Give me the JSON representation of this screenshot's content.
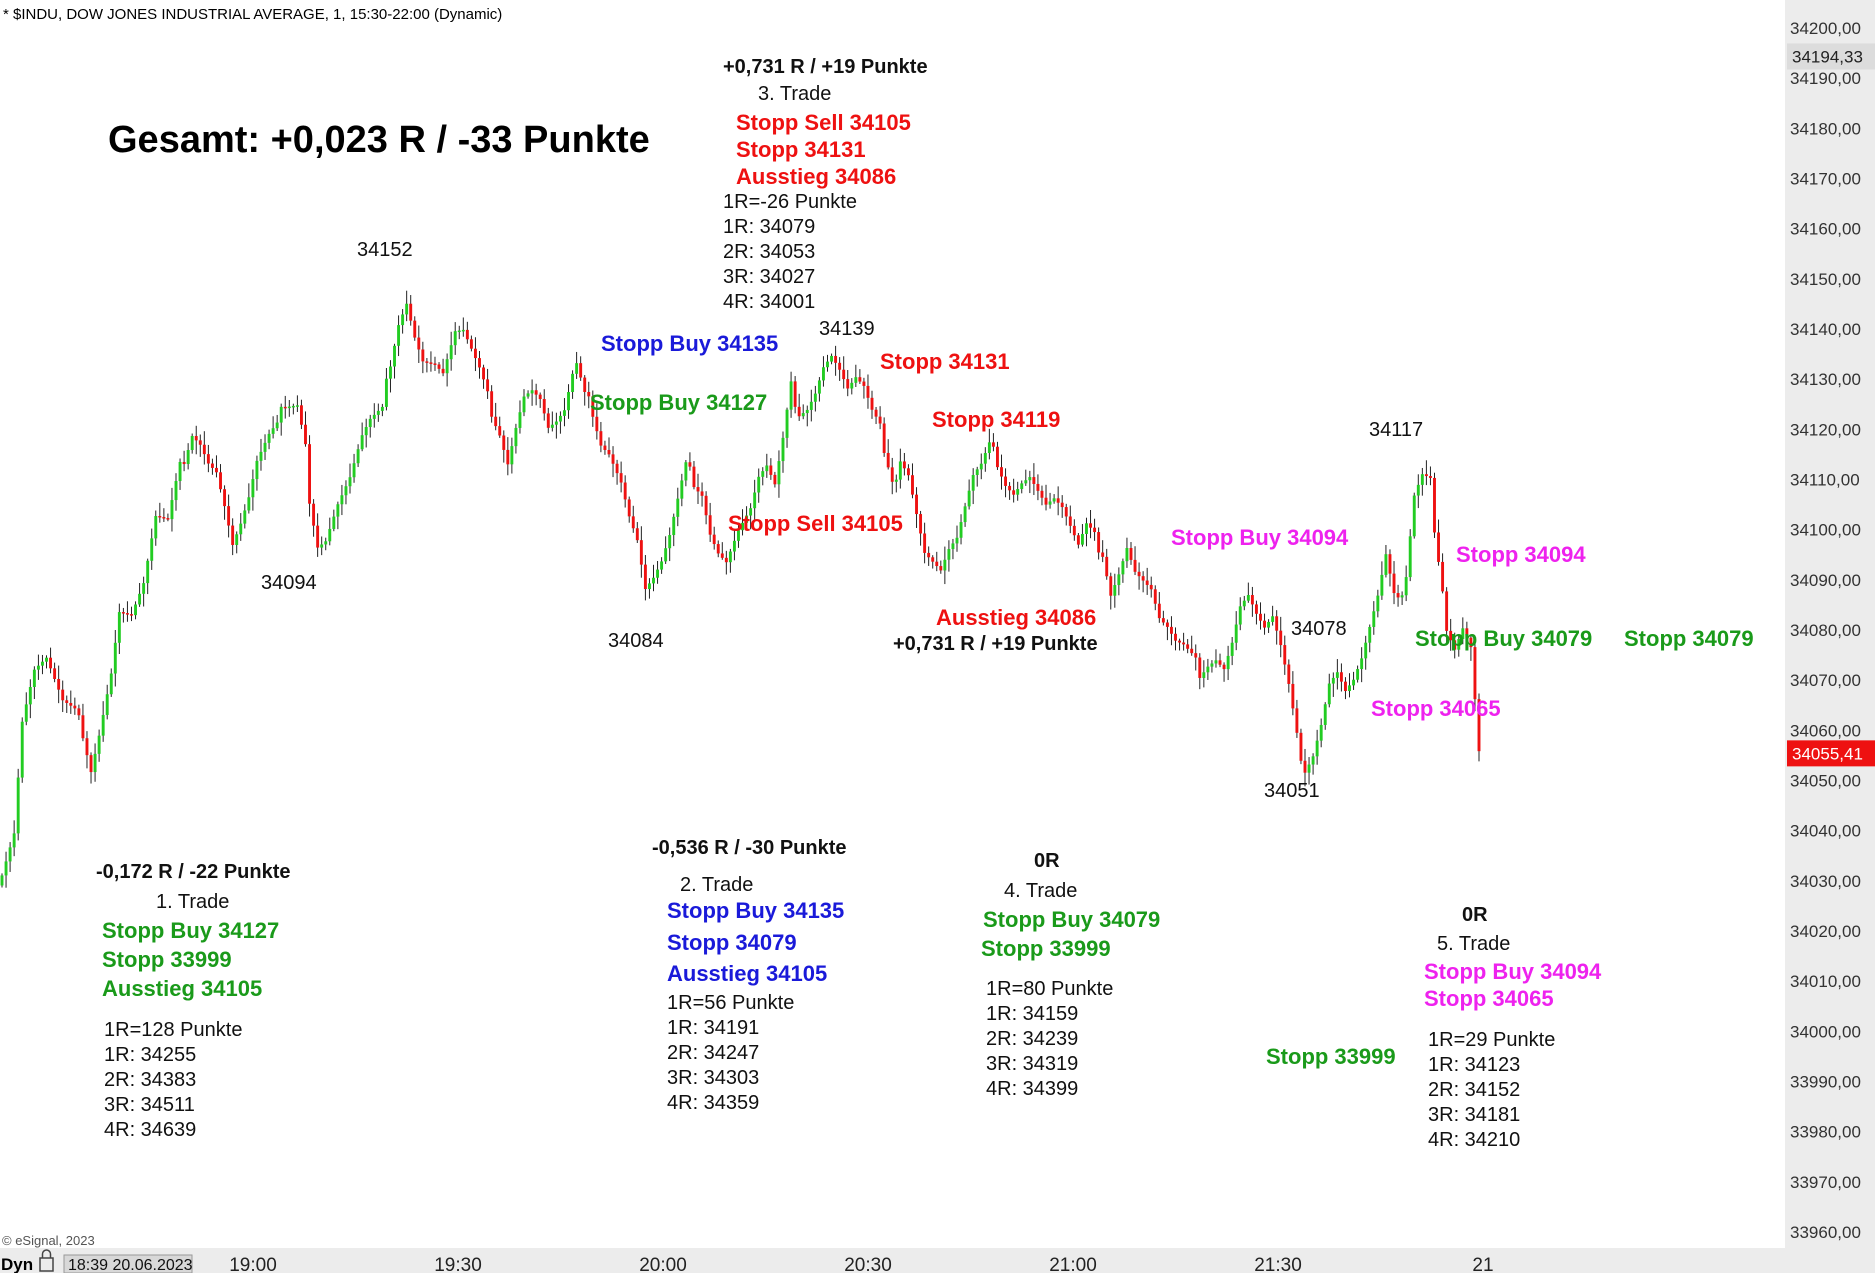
{
  "header": {
    "symbol_line": "* $INDU, DOW JONES INDUSTRIAL AVERAGE, 1, 15:30-22:00 (Dynamic)",
    "copyright": "© eSignal, 2023",
    "footer_mode": "Dyn",
    "footer_datetime": "18:39 20.06.2023"
  },
  "colors": {
    "up": "#22cc22",
    "down": "#ee1111",
    "green_text": "#1a9a1a",
    "red_text": "#ee1111",
    "blue_text": "#1a1ad9",
    "magenta_text": "#ee22ee",
    "last_price_bg": "#ee1111"
  },
  "total_label": "Gesamt: +0,023 R / -33 Punkte",
  "chart_data": {
    "type": "candlestick",
    "interval": "1 minute",
    "ylim": [
      33960,
      34200
    ],
    "y_ticks": [
      "34200,00",
      "34190,00",
      "34180,00",
      "34170,00",
      "34160,00",
      "34150,00",
      "34140,00",
      "34130,00",
      "34120,00",
      "34110,00",
      "34100,00",
      "34090,00",
      "34080,00",
      "34070,00",
      "34060,00",
      "34050,00",
      "34040,00",
      "34030,00",
      "34020,00",
      "34010,00",
      "34000,00",
      "33990,00",
      "33980,00",
      "33970,00",
      "33960,00"
    ],
    "x_ticks": [
      "19:00",
      "19:30",
      "20:00",
      "20:30",
      "21:00",
      "21:30",
      "21"
    ],
    "price_markers": [
      {
        "label": "34194,33",
        "value": 34194.33,
        "style": "grey"
      },
      {
        "label": "34055,41",
        "value": 34055.41,
        "style": "red"
      }
    ],
    "pivot_labels": [
      "34152",
      "34094",
      "34084",
      "34139",
      "34117",
      "34078",
      "34051"
    ],
    "path_points": [
      [
        0,
        34032
      ],
      [
        3,
        34040
      ],
      [
        5,
        34062
      ],
      [
        8,
        34072
      ],
      [
        11,
        34074
      ],
      [
        15,
        34065
      ],
      [
        18,
        34063
      ],
      [
        20,
        34060
      ],
      [
        22,
        34053
      ],
      [
        24,
        34060
      ],
      [
        27,
        34072
      ],
      [
        29,
        34084
      ],
      [
        32,
        34083
      ],
      [
        35,
        34089
      ],
      [
        38,
        34102
      ],
      [
        41,
        34101
      ],
      [
        44,
        34112
      ],
      [
        47,
        34120
      ],
      [
        49,
        34118
      ],
      [
        51,
        34114
      ],
      [
        53,
        34112
      ],
      [
        55,
        34105
      ],
      [
        57,
        34097
      ],
      [
        59,
        34101
      ],
      [
        61,
        34106
      ],
      [
        63,
        34113
      ],
      [
        66,
        34118
      ],
      [
        68,
        34120
      ],
      [
        70,
        34126
      ],
      [
        73,
        34126
      ],
      [
        75,
        34118
      ],
      [
        76,
        34106
      ],
      [
        78,
        34097
      ],
      [
        80,
        34098
      ],
      [
        83,
        34105
      ],
      [
        86,
        34110
      ],
      [
        89,
        34118
      ],
      [
        91,
        34121
      ],
      [
        94,
        34123
      ],
      [
        96,
        34134
      ],
      [
        98,
        34142
      ],
      [
        100,
        34146
      ],
      [
        102,
        34139
      ],
      [
        104,
        34134
      ],
      [
        107,
        34133
      ],
      [
        109,
        34131
      ],
      [
        112,
        34139
      ],
      [
        114,
        34139
      ],
      [
        116,
        34135
      ],
      [
        118,
        34131
      ],
      [
        120,
        34126
      ],
      [
        123,
        34120
      ],
      [
        125,
        34114
      ],
      [
        127,
        34121
      ],
      [
        129,
        34127
      ],
      [
        131,
        34128
      ],
      [
        133,
        34126
      ],
      [
        135,
        34120
      ],
      [
        137,
        34121
      ],
      [
        139,
        34123
      ],
      [
        141,
        34130
      ],
      [
        142,
        34132
      ],
      [
        144,
        34126
      ],
      [
        146,
        34124
      ],
      [
        148,
        34118
      ],
      [
        150,
        34116
      ],
      [
        153,
        34110
      ],
      [
        155,
        34103
      ],
      [
        157,
        34098
      ],
      [
        159,
        34088
      ],
      [
        161,
        34090
      ],
      [
        163,
        34093
      ],
      [
        165,
        34098
      ],
      [
        167,
        34105
      ],
      [
        169,
        34112
      ],
      [
        171,
        34110
      ],
      [
        173,
        34108
      ],
      [
        175,
        34100
      ],
      [
        177,
        34096
      ],
      [
        179,
        34094
      ],
      [
        182,
        34100
      ],
      [
        185,
        34104
      ],
      [
        187,
        34110
      ],
      [
        189,
        34112
      ],
      [
        191,
        34108
      ],
      [
        193,
        34117
      ],
      [
        195,
        34128
      ],
      [
        197,
        34124
      ],
      [
        199,
        34125
      ],
      [
        201,
        34128
      ],
      [
        203,
        34133
      ],
      [
        205,
        34135
      ],
      [
        207,
        34132
      ],
      [
        209,
        34128
      ],
      [
        211,
        34130
      ],
      [
        213,
        34128
      ],
      [
        215,
        34123
      ],
      [
        217,
        34120
      ],
      [
        218,
        34114
      ],
      [
        220,
        34108
      ],
      [
        222,
        34115
      ],
      [
        224,
        34112
      ],
      [
        226,
        34104
      ],
      [
        228,
        34096
      ],
      [
        230,
        34094
      ],
      [
        232,
        34092
      ],
      [
        234,
        34096
      ],
      [
        236,
        34098
      ],
      [
        238,
        34104
      ],
      [
        240,
        34110
      ],
      [
        242,
        34112
      ],
      [
        244,
        34116
      ],
      [
        246,
        34114
      ],
      [
        248,
        34110
      ],
      [
        250,
        34108
      ],
      [
        252,
        34110
      ],
      [
        254,
        34111
      ],
      [
        256,
        34108
      ],
      [
        258,
        34105
      ],
      [
        260,
        34106
      ],
      [
        262,
        34104
      ],
      [
        264,
        34100
      ],
      [
        266,
        34096
      ],
      [
        268,
        34100
      ],
      [
        270,
        34098
      ],
      [
        272,
        34096
      ],
      [
        274,
        34088
      ],
      [
        276,
        34092
      ],
      [
        278,
        34097
      ],
      [
        280,
        34092
      ],
      [
        282,
        34090
      ],
      [
        284,
        34088
      ],
      [
        286,
        34082
      ],
      [
        288,
        34080
      ],
      [
        290,
        34077
      ],
      [
        292,
        34076
      ],
      [
        294,
        34074
      ],
      [
        296,
        34072
      ],
      [
        298,
        34074
      ],
      [
        300,
        34075
      ],
      [
        302,
        34073
      ],
      [
        304,
        34078
      ],
      [
        306,
        34085
      ],
      [
        308,
        34087
      ],
      [
        310,
        34083
      ],
      [
        312,
        34080
      ],
      [
        314,
        34082
      ],
      [
        316,
        34076
      ],
      [
        318,
        34068
      ],
      [
        320,
        34058
      ],
      [
        322,
        34053
      ],
      [
        324,
        34056
      ],
      [
        326,
        34062
      ],
      [
        328,
        34070
      ],
      [
        330,
        34072
      ],
      [
        332,
        34068
      ],
      [
        334,
        34070
      ],
      [
        336,
        34074
      ],
      [
        338,
        34080
      ],
      [
        340,
        34086
      ],
      [
        342,
        34094
      ],
      [
        344,
        34086
      ],
      [
        345,
        34085
      ],
      [
        347,
        34092
      ],
      [
        349,
        34108
      ],
      [
        351,
        34112
      ],
      [
        353,
        34111
      ],
      [
        354,
        34100
      ],
      [
        355,
        34094
      ],
      [
        356,
        34088
      ],
      [
        357,
        34080
      ],
      [
        359,
        34076
      ],
      [
        361,
        34080
      ],
      [
        363,
        34076
      ],
      [
        365,
        34055
      ]
    ]
  },
  "annotations": [
    {
      "text": "+0,731 R / +19 Punkte",
      "color": "black",
      "bold": true
    },
    {
      "text": "3. Trade",
      "color": "black",
      "bold": false
    },
    {
      "text": "Stopp Sell 34105",
      "color": "red",
      "bold": true
    },
    {
      "text": "Stopp 34131",
      "color": "red",
      "bold": true
    },
    {
      "text": "Ausstieg 34086",
      "color": "red",
      "bold": true
    },
    {
      "text": "1R=-26 Punkte",
      "color": "black",
      "bold": false
    },
    {
      "text": "1R: 34079",
      "color": "black",
      "bold": false
    },
    {
      "text": "2R: 34053",
      "color": "black",
      "bold": false
    },
    {
      "text": "3R: 34027",
      "color": "black",
      "bold": false
    },
    {
      "text": "4R: 34001",
      "color": "black",
      "bold": false
    },
    {
      "text": "Stopp Buy 34135",
      "color": "blue",
      "bold": true
    },
    {
      "text": "Stopp Buy 34127",
      "color": "green",
      "bold": true
    },
    {
      "text": "Stopp 34131",
      "color": "red",
      "bold": true
    },
    {
      "text": "Stopp 34119",
      "color": "red",
      "bold": true
    },
    {
      "text": "Stopp Sell 34105",
      "color": "red",
      "bold": true
    },
    {
      "text": "Ausstieg 34086",
      "color": "red",
      "bold": true
    },
    {
      "text": "+0,731 R / +19 Punkte",
      "color": "black",
      "bold": true
    },
    {
      "text": "Stopp Buy 34094",
      "color": "magenta",
      "bold": true
    },
    {
      "text": "Stopp 34094",
      "color": "magenta",
      "bold": true
    },
    {
      "text": "Stopp Buy 34079",
      "color": "green",
      "bold": true
    },
    {
      "text": "Stopp 34079",
      "color": "green",
      "bold": true
    },
    {
      "text": "Stopp 34065",
      "color": "magenta",
      "bold": true
    },
    {
      "text": "-0,172 R / -22 Punkte",
      "color": "black",
      "bold": true
    },
    {
      "text": "1. Trade",
      "color": "black",
      "bold": false
    },
    {
      "text": "Stopp Buy 34127",
      "color": "green",
      "bold": true
    },
    {
      "text": "Stopp 33999",
      "color": "green",
      "bold": true
    },
    {
      "text": "Ausstieg 34105",
      "color": "green",
      "bold": true
    },
    {
      "text": "1R=128 Punkte",
      "color": "black",
      "bold": false
    },
    {
      "text": "1R: 34255",
      "color": "black",
      "bold": false
    },
    {
      "text": "2R: 34383",
      "color": "black",
      "bold": false
    },
    {
      "text": "3R: 34511",
      "color": "black",
      "bold": false
    },
    {
      "text": "4R: 34639",
      "color": "black",
      "bold": false
    },
    {
      "text": "-0,536 R / -30 Punkte",
      "color": "black",
      "bold": true
    },
    {
      "text": "2. Trade",
      "color": "black",
      "bold": false
    },
    {
      "text": "Stopp Buy 34135",
      "color": "blue",
      "bold": true
    },
    {
      "text": "Stopp 34079",
      "color": "blue",
      "bold": true
    },
    {
      "text": "Ausstieg 34105",
      "color": "blue",
      "bold": true
    },
    {
      "text": "1R=56 Punkte",
      "color": "black",
      "bold": false
    },
    {
      "text": "1R: 34191",
      "color": "black",
      "bold": false
    },
    {
      "text": "2R: 34247",
      "color": "black",
      "bold": false
    },
    {
      "text": "3R: 34303",
      "color": "black",
      "bold": false
    },
    {
      "text": "4R: 34359",
      "color": "black",
      "bold": false
    },
    {
      "text": "0R",
      "color": "black",
      "bold": true
    },
    {
      "text": "4. Trade",
      "color": "black",
      "bold": false
    },
    {
      "text": "Stopp Buy 34079",
      "color": "green",
      "bold": true
    },
    {
      "text": "Stopp 33999",
      "color": "green",
      "bold": true
    },
    {
      "text": "1R=80 Punkte",
      "color": "black",
      "bold": false
    },
    {
      "text": "1R: 34159",
      "color": "black",
      "bold": false
    },
    {
      "text": "2R: 34239",
      "color": "black",
      "bold": false
    },
    {
      "text": "3R: 34319",
      "color": "black",
      "bold": false
    },
    {
      "text": "4R: 34399",
      "color": "black",
      "bold": false
    },
    {
      "text": "0R",
      "color": "black",
      "bold": true
    },
    {
      "text": "5. Trade",
      "color": "black",
      "bold": false
    },
    {
      "text": "Stopp Buy 34094",
      "color": "magenta",
      "bold": true
    },
    {
      "text": "Stopp 34065",
      "color": "magenta",
      "bold": true
    },
    {
      "text": "Stopp 33999",
      "color": "green",
      "bold": true
    },
    {
      "text": "1R=29 Punkte",
      "color": "black",
      "bold": false
    },
    {
      "text": "1R: 34123",
      "color": "black",
      "bold": false
    },
    {
      "text": "2R: 34152",
      "color": "black",
      "bold": false
    },
    {
      "text": "3R: 34181",
      "color": "black",
      "bold": false
    },
    {
      "text": "4R: 34210",
      "color": "black",
      "bold": false
    }
  ]
}
